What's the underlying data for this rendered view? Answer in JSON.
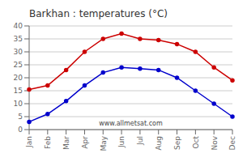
{
  "chart_data": {
    "type": "line",
    "title": "Barkhan : temperatures (°C)",
    "annotation": "www.allmetsat.com",
    "categories": [
      "Jan",
      "Feb",
      "Mar",
      "Apr",
      "May",
      "Jun",
      "Jul",
      "Aug",
      "Sep",
      "Oct",
      "Nov",
      "Dec"
    ],
    "series": [
      {
        "color": "#cc0000",
        "marker": "circle",
        "values": [
          15.5,
          17,
          23,
          30,
          35,
          37,
          35,
          34.5,
          33,
          30,
          24,
          19
        ]
      },
      {
        "color": "#0000cc",
        "marker": "circle",
        "values": [
          3,
          6,
          11,
          17,
          22,
          24,
          23.5,
          23,
          20,
          15,
          10,
          5
        ]
      }
    ],
    "ylim": [
      0,
      40
    ],
    "yticks": [
      0,
      5,
      10,
      15,
      20,
      25,
      30,
      35,
      40
    ],
    "grid": true
  }
}
